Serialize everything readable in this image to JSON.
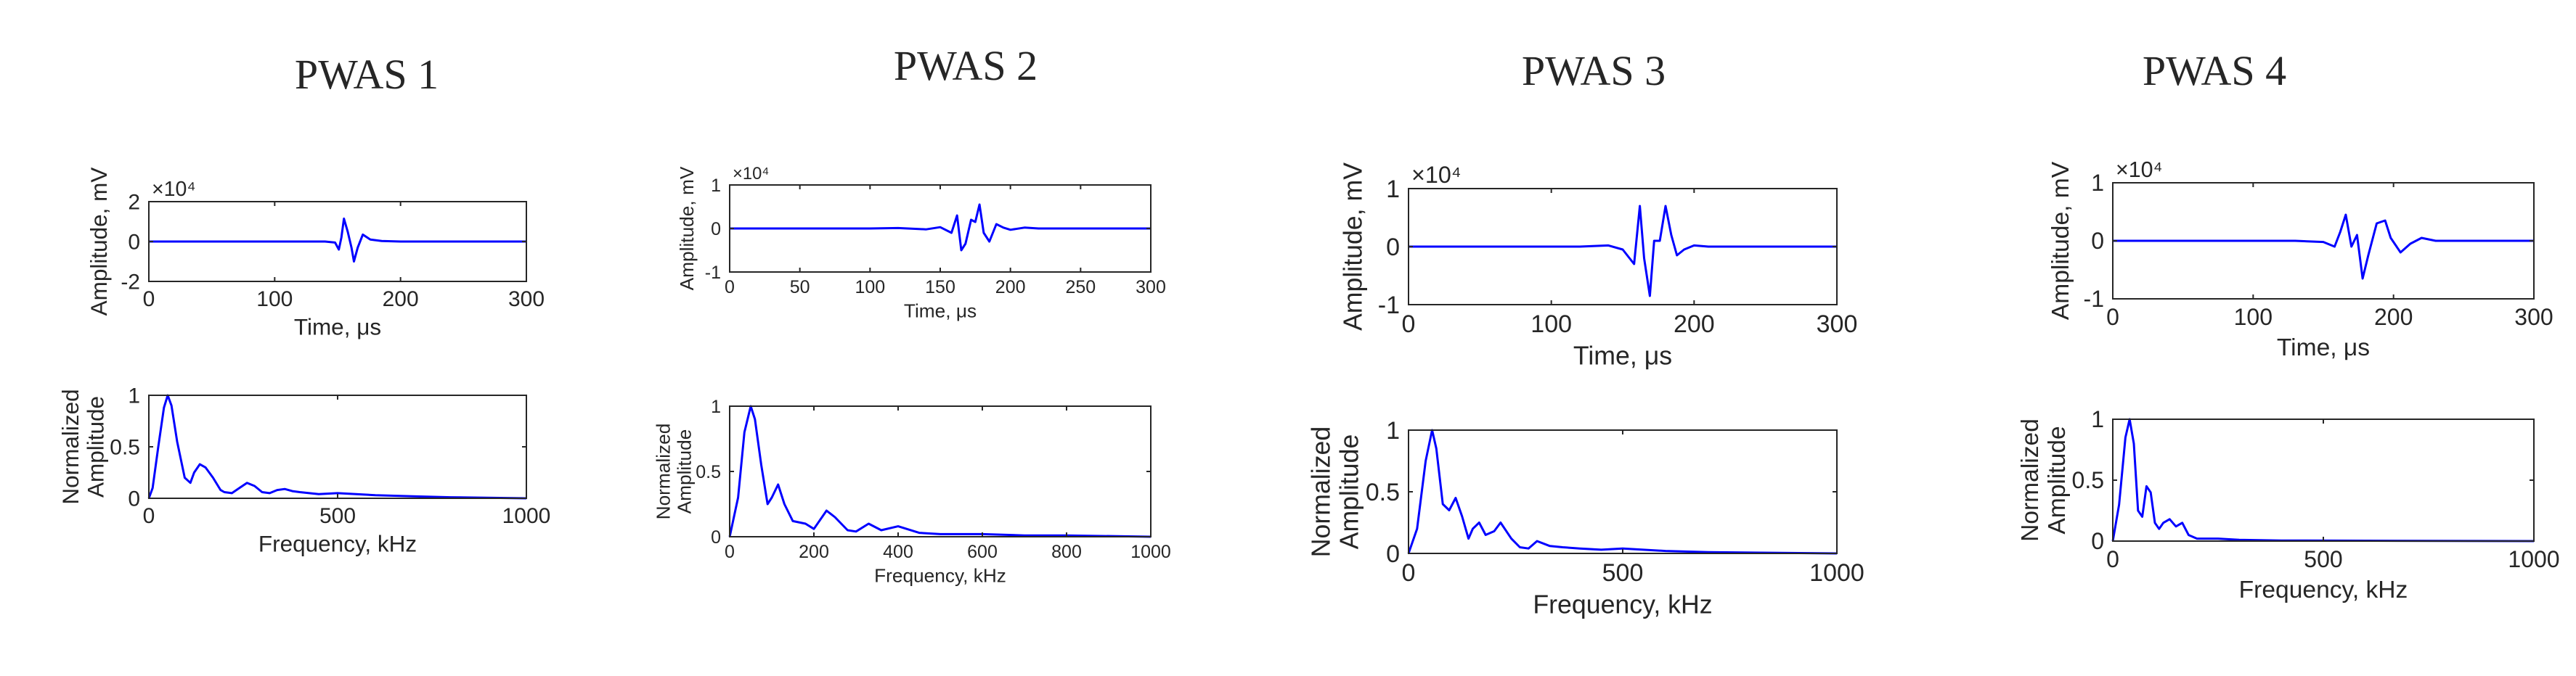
{
  "colors": {
    "trace": "#0000ff",
    "axis": "#262626",
    "text": "#262626"
  },
  "chart_data": [
    {
      "type": "line",
      "title": "PWAS 1",
      "time": {
        "xlabel": "Time, μs",
        "ylabel": "Amplitude, mV",
        "exponent_label": "×10⁴",
        "xlim": [
          0,
          300
        ],
        "ylim": [
          -2,
          2
        ],
        "xticks": [
          "0",
          "100",
          "200",
          "300"
        ],
        "yticks": [
          "-2",
          "0",
          "2"
        ],
        "x": [
          0,
          140,
          148,
          151,
          153,
          155,
          158,
          161,
          163,
          166,
          170,
          176,
          185,
          200,
          300
        ],
        "y": [
          0,
          0,
          -0.05,
          -0.4,
          0.2,
          1.15,
          0.5,
          -0.3,
          -1.0,
          -0.3,
          0.35,
          0.1,
          0.03,
          0,
          0
        ]
      },
      "spectrum": {
        "xlabel": "Frequency, kHz",
        "ylabel": "Normalized Amplitude",
        "ylabel_lines": [
          "Normalized",
          "Amplitude"
        ],
        "xlim": [
          0,
          1000
        ],
        "ylim": [
          0,
          1
        ],
        "xticks": [
          "0",
          "500",
          "1000"
        ],
        "yticks": [
          "0",
          "0.5",
          "1"
        ],
        "x": [
          0,
          10,
          25,
          40,
          50,
          60,
          75,
          95,
          110,
          120,
          135,
          150,
          170,
          190,
          200,
          220,
          240,
          260,
          280,
          300,
          320,
          340,
          360,
          380,
          400,
          450,
          500,
          600,
          700,
          800,
          1000
        ],
        "y": [
          0,
          0.1,
          0.5,
          0.88,
          1.0,
          0.9,
          0.55,
          0.2,
          0.15,
          0.25,
          0.33,
          0.3,
          0.2,
          0.08,
          0.06,
          0.05,
          0.1,
          0.15,
          0.12,
          0.06,
          0.05,
          0.08,
          0.09,
          0.07,
          0.06,
          0.04,
          0.05,
          0.03,
          0.02,
          0.01,
          0
        ]
      }
    },
    {
      "type": "line",
      "title": "PWAS 2",
      "time": {
        "xlabel": "Time, μs",
        "ylabel": "Amplitude, mV",
        "exponent_label": "×10⁴",
        "xlim": [
          0,
          300
        ],
        "ylim": [
          -1,
          1
        ],
        "xticks": [
          "0",
          "50",
          "100",
          "150",
          "200",
          "250",
          "300"
        ],
        "yticks": [
          "-1",
          "0",
          "1"
        ],
        "x": [
          0,
          100,
          120,
          140,
          150,
          158,
          162,
          165,
          168,
          172,
          175,
          178,
          181,
          185,
          190,
          195,
          200,
          210,
          220,
          300
        ],
        "y": [
          0,
          0,
          0.01,
          -0.02,
          0.03,
          -0.1,
          0.3,
          -0.5,
          -0.35,
          0.2,
          0.15,
          0.55,
          -0.1,
          -0.3,
          0.1,
          0.02,
          -0.03,
          0.02,
          0,
          0
        ]
      },
      "spectrum": {
        "xlabel": "Frequency, kHz",
        "ylabel": "Normalized Amplitude",
        "ylabel_lines": [
          "Normalized",
          "Amplitude"
        ],
        "xlim": [
          0,
          1000
        ],
        "ylim": [
          0,
          1
        ],
        "xticks": [
          "0",
          "200",
          "400",
          "600",
          "800",
          "1000"
        ],
        "yticks": [
          "0",
          "0.5",
          "1"
        ],
        "x": [
          0,
          20,
          35,
          50,
          60,
          75,
          90,
          100,
          115,
          130,
          150,
          180,
          200,
          230,
          250,
          280,
          300,
          330,
          360,
          400,
          450,
          500,
          600,
          700,
          800,
          1000
        ],
        "y": [
          0,
          0.3,
          0.8,
          1.0,
          0.9,
          0.55,
          0.25,
          0.3,
          0.4,
          0.25,
          0.12,
          0.1,
          0.06,
          0.2,
          0.15,
          0.05,
          0.04,
          0.1,
          0.05,
          0.08,
          0.03,
          0.02,
          0.02,
          0.01,
          0.01,
          0
        ]
      }
    },
    {
      "type": "line",
      "title": "PWAS 3",
      "time": {
        "xlabel": "Time,  μs",
        "ylabel": "Amplitude, mV",
        "exponent_label": "×10⁴",
        "xlim": [
          0,
          300
        ],
        "ylim": [
          -1,
          1
        ],
        "xticks": [
          "0",
          "100",
          "200",
          "300"
        ],
        "yticks": [
          "-1",
          "0",
          "1"
        ],
        "x": [
          0,
          120,
          140,
          150,
          158,
          162,
          165,
          169,
          172,
          176,
          180,
          184,
          188,
          193,
          200,
          210,
          300
        ],
        "y": [
          0,
          0,
          0.02,
          -0.05,
          -0.3,
          0.7,
          -0.2,
          -0.85,
          0.1,
          0.1,
          0.7,
          0.2,
          -0.15,
          -0.05,
          0.02,
          0,
          0
        ]
      },
      "spectrum": {
        "xlabel": "Frequency, kHz",
        "ylabel": "Normalized Amplitude",
        "ylabel_lines": [
          "Normalized",
          "Amplitude"
        ],
        "xlim": [
          0,
          1000
        ],
        "ylim": [
          0,
          1
        ],
        "xticks": [
          "0",
          "500",
          "1000"
        ],
        "yticks": [
          "0",
          "0.5",
          "1"
        ],
        "x": [
          0,
          20,
          40,
          55,
          65,
          80,
          95,
          110,
          125,
          140,
          150,
          165,
          180,
          200,
          215,
          240,
          260,
          280,
          300,
          330,
          360,
          400,
          450,
          500,
          600,
          700,
          1000
        ],
        "y": [
          0,
          0.2,
          0.75,
          1.0,
          0.85,
          0.4,
          0.35,
          0.45,
          0.3,
          0.12,
          0.2,
          0.25,
          0.15,
          0.18,
          0.25,
          0.12,
          0.05,
          0.04,
          0.1,
          0.06,
          0.05,
          0.04,
          0.03,
          0.04,
          0.02,
          0.01,
          0
        ]
      }
    },
    {
      "type": "line",
      "title": "PWAS 4",
      "time": {
        "xlabel": "Time,  μs",
        "ylabel": "Amplitude, mV",
        "exponent_label": "×10⁴",
        "xlim": [
          0,
          300
        ],
        "ylim": [
          -1,
          1
        ],
        "xticks": [
          "0",
          "100",
          "200",
          "300"
        ],
        "yticks": [
          "-1",
          "0",
          "1"
        ],
        "x": [
          0,
          130,
          150,
          158,
          162,
          166,
          170,
          174,
          178,
          182,
          188,
          194,
          198,
          205,
          212,
          220,
          230,
          300
        ],
        "y": [
          0,
          0,
          -0.02,
          -0.1,
          0.15,
          0.45,
          -0.1,
          0.1,
          -0.65,
          -0.25,
          0.3,
          0.35,
          0.05,
          -0.2,
          -0.05,
          0.05,
          0,
          0
        ]
      },
      "spectrum": {
        "xlabel": "Frequency, kHz",
        "ylabel": "Normalized Amplitude",
        "ylabel_lines": [
          "Normalized",
          "Amplitude"
        ],
        "xlim": [
          0,
          1000
        ],
        "ylim": [
          0,
          1
        ],
        "xticks": [
          "0",
          "500",
          "1000"
        ],
        "yticks": [
          "0",
          "0.5",
          "1"
        ],
        "x": [
          0,
          15,
          30,
          40,
          50,
          60,
          70,
          80,
          90,
          100,
          110,
          120,
          135,
          150,
          165,
          180,
          200,
          250,
          300,
          400,
          1000
        ],
        "y": [
          0,
          0.3,
          0.85,
          1.0,
          0.8,
          0.25,
          0.2,
          0.45,
          0.4,
          0.15,
          0.1,
          0.15,
          0.18,
          0.12,
          0.15,
          0.05,
          0.02,
          0.02,
          0.01,
          0.005,
          0
        ]
      }
    }
  ]
}
